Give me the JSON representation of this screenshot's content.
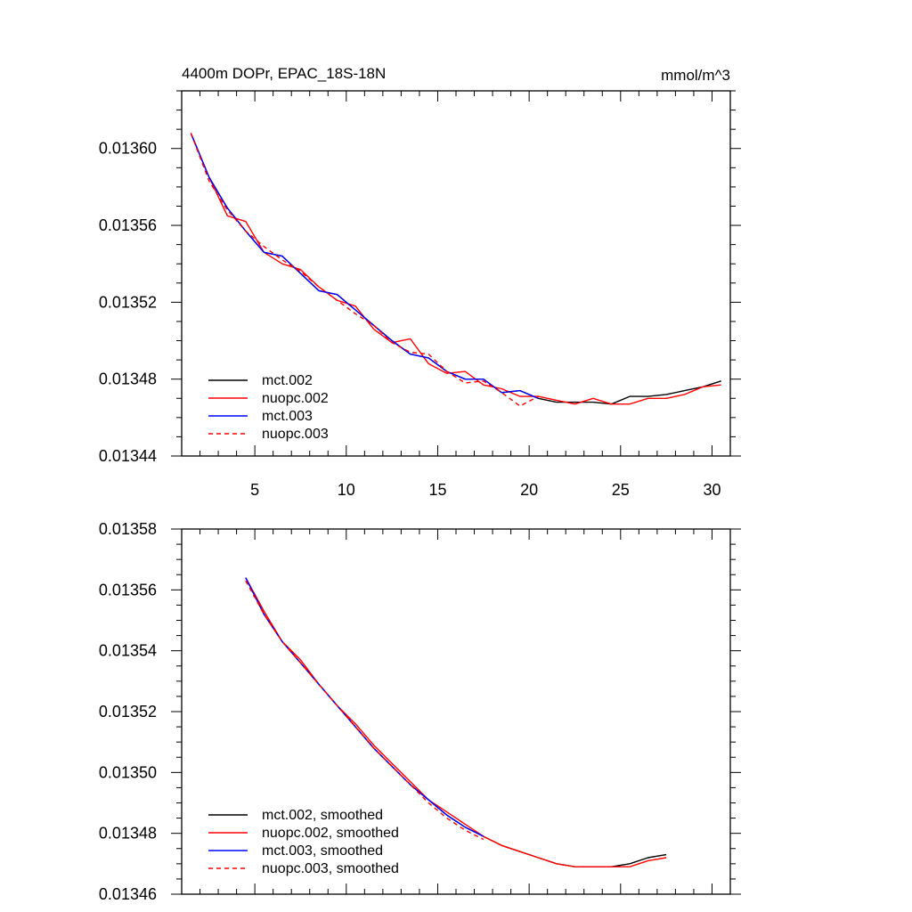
{
  "chart_data": [
    {
      "type": "line",
      "title": "4400m DOPr, EPAC_18S-18N",
      "units": "mmol/m^3",
      "xlim": [
        1,
        31
      ],
      "ylim": [
        0.01344,
        0.01363
      ],
      "x_ticks": [
        5,
        10,
        15,
        20,
        25,
        30
      ],
      "x_tick_labels": [
        "5",
        "10",
        "15",
        "20",
        "25",
        "30"
      ],
      "y_ticks": [
        0.01344,
        0.01348,
        0.01352,
        0.01356,
        0.0136
      ],
      "y_tick_labels": [
        "0.01344",
        "0.01348",
        "0.01352",
        "0.01356",
        "0.01360"
      ],
      "legend_position": "bottom-left",
      "series": [
        {
          "name": "mct.002",
          "color": "#000000",
          "dash": "solid",
          "x": [
            1.5,
            2.5,
            3.5,
            4.5,
            5.5,
            6.5,
            7.5,
            8.5,
            9.5,
            10.5,
            11.5,
            12.5,
            13.5,
            14.5,
            15.5,
            16.5,
            17.5,
            18.5,
            19.5,
            20.5,
            21.5,
            22.5,
            23.5,
            24.5,
            25.5,
            26.5,
            27.5,
            28.5,
            29.5,
            30.5
          ],
          "y": [
            0.013608,
            0.013585,
            0.013569,
            0.013557,
            0.013546,
            0.013544,
            0.013535,
            0.013526,
            0.013524,
            0.013516,
            0.013508,
            0.0135,
            0.013493,
            0.013491,
            0.013484,
            0.01348,
            0.01348,
            0.013473,
            0.013474,
            0.01347,
            0.013468,
            0.013468,
            0.013468,
            0.013467,
            0.013471,
            0.013471,
            0.013472,
            0.013474,
            0.013476,
            0.013479
          ]
        },
        {
          "name": "nuopc.002",
          "color": "#ff0000",
          "dash": "solid",
          "x": [
            1.5,
            2.5,
            3.5,
            4.5,
            5.5,
            6.5,
            7.5,
            8.5,
            9.5,
            10.5,
            11.5,
            12.5,
            13.5,
            14.5,
            15.5,
            16.5,
            17.5,
            18.5,
            19.5,
            20.5,
            21.5,
            22.5,
            23.5,
            24.5,
            25.5,
            26.5,
            27.5,
            28.5,
            29.5,
            30.5
          ],
          "y": [
            0.013608,
            0.013585,
            0.013565,
            0.013562,
            0.013546,
            0.01354,
            0.013537,
            0.013528,
            0.013521,
            0.013518,
            0.013506,
            0.013499,
            0.013501,
            0.013488,
            0.013483,
            0.013484,
            0.013477,
            0.013475,
            0.013471,
            0.013471,
            0.013469,
            0.013467,
            0.01347,
            0.013467,
            0.013467,
            0.01347,
            0.01347,
            0.013472,
            0.013476,
            0.013477
          ]
        },
        {
          "name": "mct.003",
          "color": "#0000ff",
          "dash": "solid",
          "x": [
            1.5,
            2.5,
            3.5,
            4.5,
            5.5,
            6.5,
            7.5,
            8.5,
            9.5,
            10.5,
            11.5,
            12.5,
            13.5,
            14.5,
            15.5,
            16.5,
            17.5,
            18.5,
            19.5,
            20.5
          ],
          "y": [
            0.013608,
            0.013585,
            0.013569,
            0.013557,
            0.013546,
            0.013544,
            0.013535,
            0.013526,
            0.013524,
            0.013516,
            0.013508,
            0.0135,
            0.013493,
            0.013491,
            0.013484,
            0.01348,
            0.01348,
            0.013473,
            0.013474,
            0.01347
          ]
        },
        {
          "name": "nuopc.003",
          "color": "#ff0000",
          "dash": "dashed",
          "x": [
            1.5,
            2.5,
            3.5,
            4.5,
            5.5,
            6.5,
            7.5,
            8.5,
            9.5,
            10.5,
            11.5,
            12.5,
            13.5,
            14.5,
            15.5,
            16.5,
            17.5,
            18.5,
            19.5,
            20.5
          ],
          "y": [
            0.013608,
            0.013583,
            0.013568,
            0.013557,
            0.013549,
            0.013542,
            0.013536,
            0.013528,
            0.013521,
            0.013514,
            0.013508,
            0.013499,
            0.013494,
            0.013493,
            0.013484,
            0.013478,
            0.013479,
            0.013473,
            0.013466,
            0.013471
          ]
        }
      ]
    },
    {
      "type": "line",
      "xlim": [
        1,
        31
      ],
      "ylim": [
        0.01346,
        0.01358
      ],
      "x_ticks": [
        5,
        10,
        15,
        20,
        25,
        30
      ],
      "y_ticks": [
        0.01346,
        0.01348,
        0.0135,
        0.01352,
        0.01354,
        0.01356,
        0.01358
      ],
      "y_tick_labels": [
        "0.01346",
        "0.01348",
        "0.01350",
        "0.01352",
        "0.01354",
        "0.01356",
        "0.01358"
      ],
      "legend_position": "bottom-left",
      "series": [
        {
          "name": "mct.002, smoothed",
          "color": "#000000",
          "dash": "solid",
          "x": [
            4.5,
            5.5,
            6.5,
            7.5,
            8.5,
            9.5,
            10.5,
            11.5,
            12.5,
            13.5,
            14.5,
            15.5,
            16.5,
            17.5,
            18.5,
            19.5,
            20.5,
            21.5,
            22.5,
            23.5,
            24.5,
            25.5,
            26.5,
            27.5
          ],
          "y": [
            0.013564,
            0.013552,
            0.013543,
            0.013536,
            0.013529,
            0.013522,
            0.013515,
            0.013508,
            0.013502,
            0.013496,
            0.013491,
            0.013486,
            0.013482,
            0.013479,
            0.013476,
            0.013474,
            0.013472,
            0.01347,
            0.013469,
            0.013469,
            0.013469,
            0.01347,
            0.013472,
            0.013473
          ]
        },
        {
          "name": "nuopc.002, smoothed",
          "color": "#ff0000",
          "dash": "solid",
          "x": [
            4.5,
            5.5,
            6.5,
            7.5,
            8.5,
            9.5,
            10.5,
            11.5,
            12.5,
            13.5,
            14.5,
            15.5,
            16.5,
            17.5,
            18.5,
            19.5,
            20.5,
            21.5,
            22.5,
            23.5,
            24.5,
            25.5,
            26.5,
            27.5
          ],
          "y": [
            0.013564,
            0.013553,
            0.013543,
            0.013537,
            0.013529,
            0.013522,
            0.013516,
            0.013509,
            0.013503,
            0.013497,
            0.013491,
            0.013487,
            0.013483,
            0.013479,
            0.013476,
            0.013474,
            0.013472,
            0.01347,
            0.013469,
            0.013469,
            0.013469,
            0.013469,
            0.013471,
            0.013472
          ]
        },
        {
          "name": "mct.003, smoothed",
          "color": "#0000ff",
          "dash": "solid",
          "x": [
            4.5,
            5.5,
            6.5,
            7.5,
            8.5,
            9.5,
            10.5,
            11.5,
            12.5,
            13.5,
            14.5,
            15.5,
            16.5,
            17.5
          ],
          "y": [
            0.013564,
            0.013552,
            0.013543,
            0.013536,
            0.013529,
            0.013522,
            0.013515,
            0.013508,
            0.013502,
            0.013496,
            0.013491,
            0.013486,
            0.013482,
            0.013479
          ]
        },
        {
          "name": "nuopc.003, smoothed",
          "color": "#ff0000",
          "dash": "dashed",
          "x": [
            4.5,
            5.5,
            6.5,
            7.5,
            8.5,
            9.5,
            10.5,
            11.5,
            12.5,
            13.5,
            14.5,
            15.5,
            16.5,
            17.5
          ],
          "y": [
            0.013563,
            0.013552,
            0.013543,
            0.013536,
            0.013529,
            0.013522,
            0.013515,
            0.013508,
            0.013502,
            0.013496,
            0.01349,
            0.013485,
            0.013481,
            0.013478
          ]
        }
      ]
    }
  ]
}
